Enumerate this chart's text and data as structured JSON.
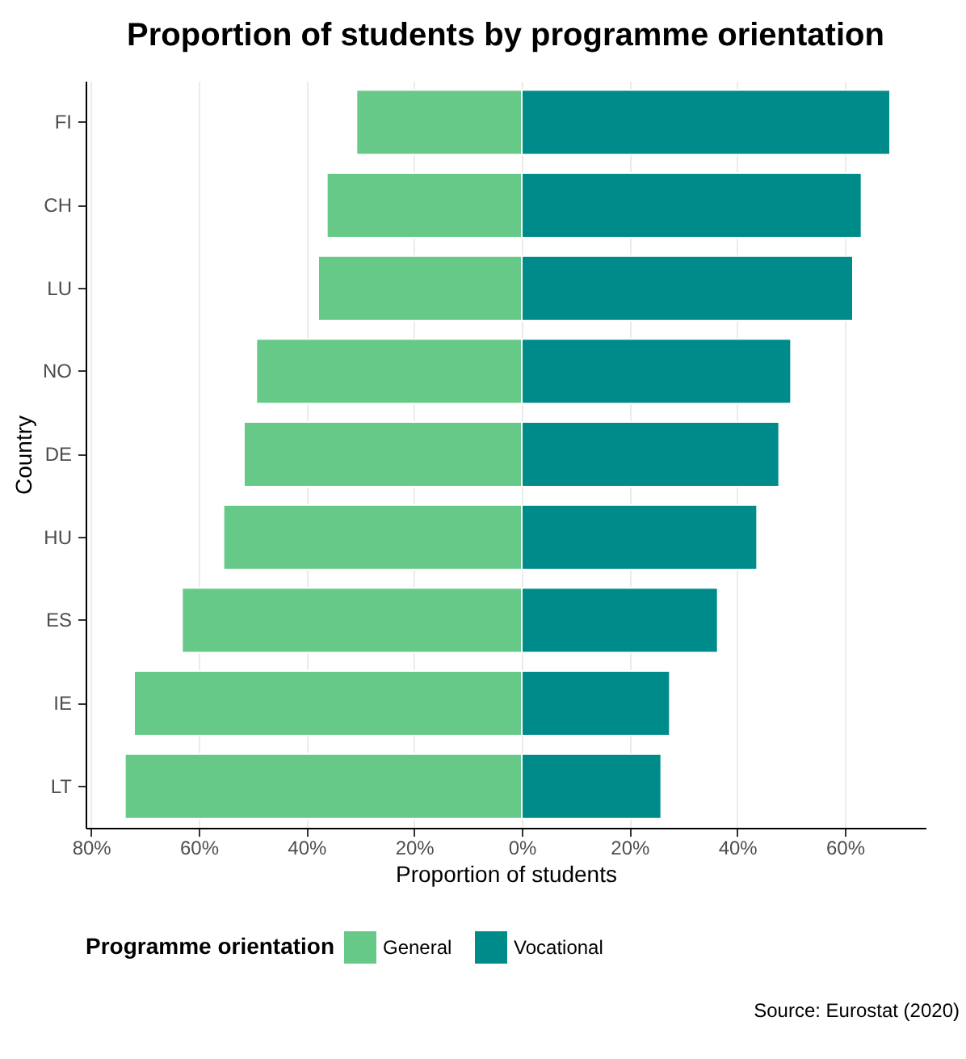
{
  "chart_data": {
    "type": "bar",
    "title": "Proportion of students by programme orientation",
    "xlabel": "Proportion of students",
    "ylabel": "Country",
    "legend_title": "Programme orientation",
    "annotations": [
      "Source: Eurostat (2020)"
    ],
    "orientation": "horizontal",
    "stacked": true,
    "categories": [
      "FI",
      "CH",
      "LU",
      "NO",
      "DE",
      "HU",
      "ES",
      "IE",
      "LT"
    ],
    "series": [
      {
        "name": "General",
        "color": "#66c987",
        "values": [
          -30.7,
          -36.2,
          -37.8,
          -49.3,
          -51.6,
          -55.4,
          -63.1,
          -72.0,
          -73.7
        ]
      },
      {
        "name": "Vocational",
        "color": "#008b8b",
        "values": [
          68.4,
          63.1,
          61.5,
          50.0,
          47.8,
          43.7,
          36.4,
          27.5,
          25.9
        ]
      }
    ],
    "xlim": [
      -81,
      75
    ],
    "xticks": [
      {
        "value": -80,
        "label": "80%"
      },
      {
        "value": -60,
        "label": "60%"
      },
      {
        "value": -40,
        "label": "40%"
      },
      {
        "value": -20,
        "label": "20%"
      },
      {
        "value": 0,
        "label": "0%"
      },
      {
        "value": 20,
        "label": "20%"
      },
      {
        "value": 40,
        "label": "40%"
      },
      {
        "value": 60,
        "label": "60%"
      }
    ],
    "grid": "x",
    "legend": "bottom"
  }
}
